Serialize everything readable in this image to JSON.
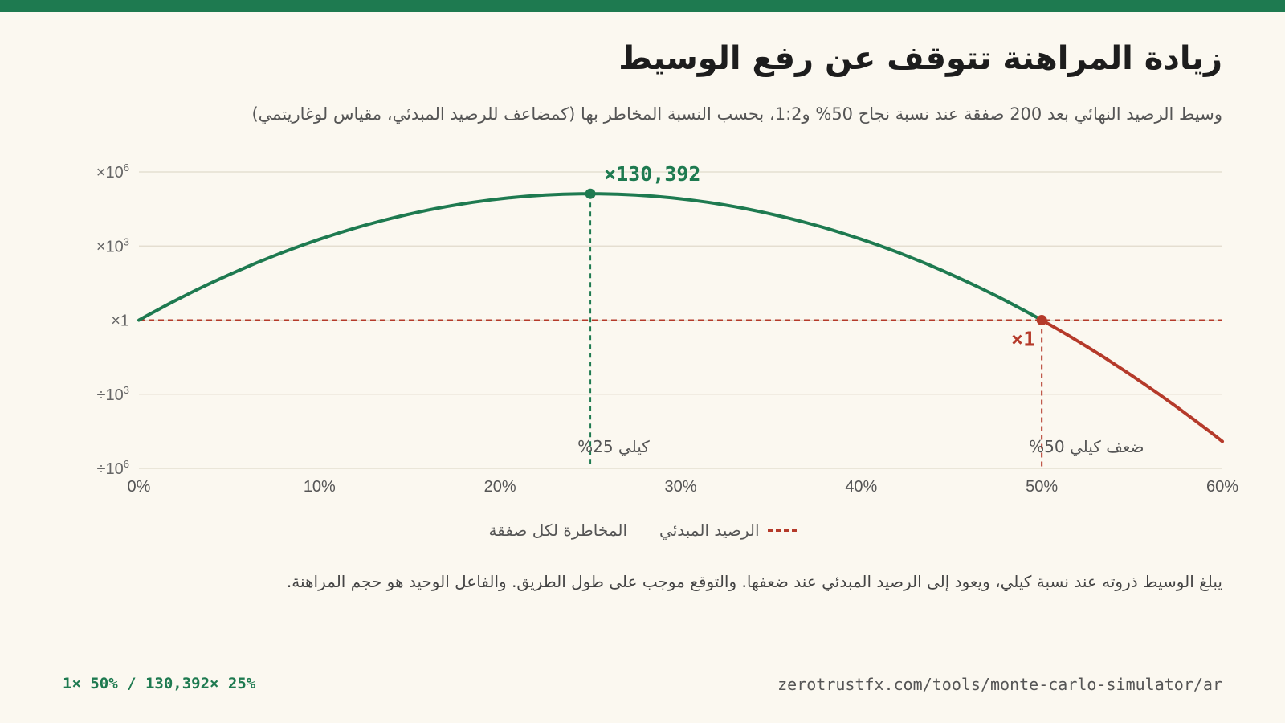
{
  "header": {
    "title": "زيادة المراهنة تتوقف عن رفع الوسيط",
    "subtitle": "وسيط الرصيد النهائي بعد 200 صفقة عند نسبة نجاح 50% و1:2، بحسب النسبة المخاطر بها (كمضاعف للرصيد المبدئي، مقياس لوغاريتمي)"
  },
  "legend": {
    "risk_label": "المخاطرة لكل صفقة",
    "baseline_label": "الرصيد المبدئي"
  },
  "note": "يبلغ الوسيط ذروته عند نسبة كيلي، ويعود إلى الرصيد المبدئي عند ضعفها. والتوقع موجب على طول الطريق. والفاعل الوحيد هو حجم المراهنة.",
  "footer": {
    "left": "1× 50% / 130,392× 25%",
    "right": "zerotrustfx.com/tools/monte-carlo-simulator/ar"
  },
  "colors": {
    "accent": "#1e7a50",
    "danger": "#b53a2a",
    "grid": "#e0dacb"
  },
  "chart_data": {
    "type": "line",
    "x_scale": "linear",
    "y_scale": "log",
    "xlim": [
      0,
      60
    ],
    "ylim_log10": [
      -6,
      6
    ],
    "x_ticks": [
      {
        "v": 0,
        "label": "0%"
      },
      {
        "v": 10,
        "label": "10%"
      },
      {
        "v": 20,
        "label": "20%"
      },
      {
        "v": 30,
        "label": "30%"
      },
      {
        "v": 40,
        "label": "40%"
      },
      {
        "v": 50,
        "label": "50%"
      },
      {
        "v": 60,
        "label": "60%"
      }
    ],
    "y_ticks": [
      {
        "v": 6,
        "prefix": "×10",
        "exp": "6"
      },
      {
        "v": 3,
        "prefix": "×10",
        "exp": "3"
      },
      {
        "v": 0,
        "prefix": "×1",
        "exp": ""
      },
      {
        "v": -3,
        "prefix": "÷10",
        "exp": "3"
      },
      {
        "v": -6,
        "prefix": "÷10",
        "exp": "6"
      }
    ],
    "series": [
      {
        "name": "المخاطرة لكل صفقة",
        "x": [
          0,
          2,
          4,
          6,
          8,
          10,
          12,
          14,
          16,
          18,
          20,
          22,
          24,
          25,
          26,
          28,
          30,
          32,
          34,
          36,
          38,
          40,
          42,
          44,
          46,
          48,
          50,
          52,
          54,
          56,
          58,
          60
        ],
        "log10_y": [
          0.0,
          0.836,
          1.596,
          2.281,
          2.891,
          3.424,
          3.881,
          4.261,
          4.563,
          4.784,
          4.924,
          4.98,
          4.951,
          5.115,
          4.95,
          4.88,
          4.742,
          4.533,
          4.251,
          3.893,
          3.455,
          2.933,
          2.324,
          1.622,
          0.823,
          -0.08,
          0.0,
          -1.27,
          -2.385,
          -3.636,
          -5.034,
          -5.5
        ]
      }
    ],
    "baseline": {
      "label": "الرصيد المبدئي",
      "log10_y": 0
    },
    "peak": {
      "x": 25,
      "label": "×130,392"
    },
    "breakeven": {
      "x": 50,
      "label": "×1"
    },
    "vlines": [
      {
        "x": 25,
        "label": "كيلي 25%"
      },
      {
        "x": 50,
        "label": "ضعف كيلي 50%"
      }
    ]
  }
}
